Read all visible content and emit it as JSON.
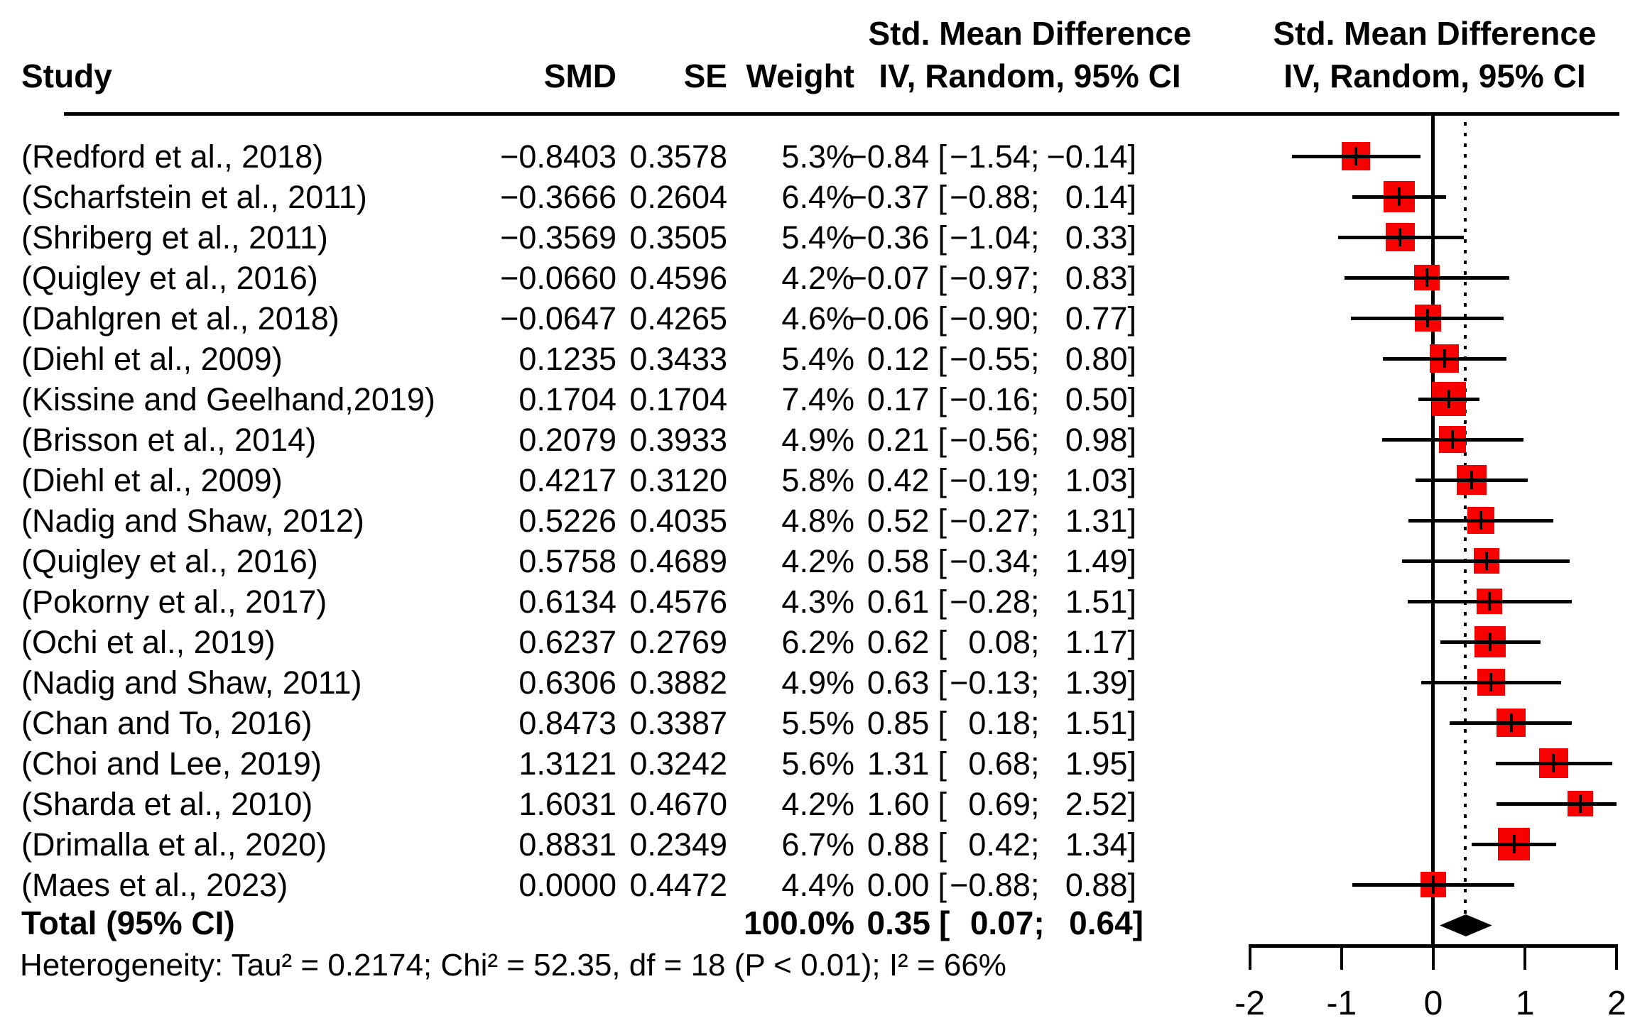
{
  "header": {
    "study": "Study",
    "smd": "SMD",
    "se": "SE",
    "weight": "Weight",
    "effect_text_line1": "Std. Mean Difference",
    "effect_text_line2": "IV, Random, 95% CI",
    "effect_plot_line1": "Std. Mean Difference",
    "effect_plot_line2": "IV, Random, 95% CI"
  },
  "total": {
    "label": "Total (95% CI)",
    "weight": "100.0%",
    "est": 0.35,
    "lo": 0.07,
    "hi": 0.64,
    "est_text": "0.35",
    "lo_text": "0.07",
    "hi_text": "0.64"
  },
  "heterogeneity": {
    "text": "Heterogeneity: Tau² = 0.2174; Chi² = 52.35, df = 18 (P < 0.01); I² = 66%"
  },
  "colors": {
    "square": "#f90000",
    "line": "#000000",
    "diamond": "#000000",
    "background": "#ffffff"
  },
  "chart_data": {
    "type": "scatter",
    "subtype": "forest-plot-meta-analysis",
    "effect_measure": "Std. Mean Difference (IV, Random, 95% CI)",
    "ci_format": {
      "open": "[",
      "sep": ";",
      "close": "]"
    },
    "x_axis": {
      "ticks": [
        -2,
        -1,
        0,
        1,
        2
      ],
      "tick_labels": [
        "-2",
        "-1",
        "0",
        "1",
        "2"
      ],
      "xlim": [
        -2,
        2
      ],
      "zero_line": 0,
      "pooled_dotted_line": 0.35
    },
    "pooled": {
      "est": 0.35,
      "lo": 0.07,
      "hi": 0.64,
      "i2": "66%",
      "tau2": "0.2174",
      "chi2": "52.35",
      "df": 18,
      "p": "< 0.01"
    },
    "studies": [
      {
        "label": "(Redford et al., 2018)",
        "smd": "−0.8403",
        "se": "0.3578",
        "weight": "5.3%",
        "w": 5.3,
        "est": -0.84,
        "lo": -1.54,
        "hi": -0.14,
        "est_text": "−0.84",
        "lo_text": "−1.54",
        "hi_text": "−0.14"
      },
      {
        "label": "(Scharfstein et al., 2011)",
        "smd": "−0.3666",
        "se": "0.2604",
        "weight": "6.4%",
        "w": 6.4,
        "est": -0.37,
        "lo": -0.88,
        "hi": 0.14,
        "est_text": "−0.37",
        "lo_text": "−0.88",
        "hi_text": "0.14"
      },
      {
        "label": "(Shriberg et al., 2011)",
        "smd": "−0.3569",
        "se": "0.3505",
        "weight": "5.4%",
        "w": 5.4,
        "est": -0.36,
        "lo": -1.04,
        "hi": 0.33,
        "est_text": "−0.36",
        "lo_text": "−1.04",
        "hi_text": "0.33"
      },
      {
        "label": "(Quigley et al., 2016)",
        "smd": "−0.0660",
        "se": "0.4596",
        "weight": "4.2%",
        "w": 4.2,
        "est": -0.07,
        "lo": -0.97,
        "hi": 0.83,
        "est_text": "−0.07",
        "lo_text": "−0.97",
        "hi_text": "0.83"
      },
      {
        "label": "(Dahlgren et al., 2018)",
        "smd": "−0.0647",
        "se": "0.4265",
        "weight": "4.6%",
        "w": 4.6,
        "est": -0.06,
        "lo": -0.9,
        "hi": 0.77,
        "est_text": "−0.06",
        "lo_text": "−0.90",
        "hi_text": "0.77"
      },
      {
        "label": "(Diehl et al., 2009)",
        "smd": "0.1235",
        "se": "0.3433",
        "weight": "5.4%",
        "w": 5.4,
        "est": 0.12,
        "lo": -0.55,
        "hi": 0.8,
        "est_text": "0.12",
        "lo_text": "−0.55",
        "hi_text": "0.80"
      },
      {
        "label": "(Kissine and Geelhand,2019)",
        "smd": "0.1704",
        "se": "0.1704",
        "weight": "7.4%",
        "w": 7.4,
        "est": 0.17,
        "lo": -0.16,
        "hi": 0.5,
        "est_text": "0.17",
        "lo_text": "−0.16",
        "hi_text": "0.50"
      },
      {
        "label": "(Brisson et al., 2014)",
        "smd": "0.2079",
        "se": "0.3933",
        "weight": "4.9%",
        "w": 4.9,
        "est": 0.21,
        "lo": -0.56,
        "hi": 0.98,
        "est_text": "0.21",
        "lo_text": "−0.56",
        "hi_text": "0.98"
      },
      {
        "label": "(Diehl et al., 2009)",
        "smd": "0.4217",
        "se": "0.3120",
        "weight": "5.8%",
        "w": 5.8,
        "est": 0.42,
        "lo": -0.19,
        "hi": 1.03,
        "est_text": "0.42",
        "lo_text": "−0.19",
        "hi_text": "1.03"
      },
      {
        "label": "(Nadig and Shaw, 2012)",
        "smd": "0.5226",
        "se": "0.4035",
        "weight": "4.8%",
        "w": 4.8,
        "est": 0.52,
        "lo": -0.27,
        "hi": 1.31,
        "est_text": "0.52",
        "lo_text": "−0.27",
        "hi_text": "1.31"
      },
      {
        "label": "(Quigley et al., 2016)",
        "smd": "0.5758",
        "se": "0.4689",
        "weight": "4.2%",
        "w": 4.2,
        "est": 0.58,
        "lo": -0.34,
        "hi": 1.49,
        "est_text": "0.58",
        "lo_text": "−0.34",
        "hi_text": "1.49"
      },
      {
        "label": "(Pokorny et al., 2017)",
        "smd": "0.6134",
        "se": "0.4576",
        "weight": "4.3%",
        "w": 4.3,
        "est": 0.61,
        "lo": -0.28,
        "hi": 1.51,
        "est_text": "0.61",
        "lo_text": "−0.28",
        "hi_text": "1.51"
      },
      {
        "label": "(Ochi et al., 2019)",
        "smd": "0.6237",
        "se": "0.2769",
        "weight": "6.2%",
        "w": 6.2,
        "est": 0.62,
        "lo": 0.08,
        "hi": 1.17,
        "est_text": "0.62",
        "lo_text": "0.08",
        "hi_text": "1.17"
      },
      {
        "label": "(Nadig and Shaw, 2011)",
        "smd": "0.6306",
        "se": "0.3882",
        "weight": "4.9%",
        "w": 4.9,
        "est": 0.63,
        "lo": -0.13,
        "hi": 1.39,
        "est_text": "0.63",
        "lo_text": "−0.13",
        "hi_text": "1.39"
      },
      {
        "label": "(Chan and To, 2016)",
        "smd": "0.8473",
        "se": "0.3387",
        "weight": "5.5%",
        "w": 5.5,
        "est": 0.85,
        "lo": 0.18,
        "hi": 1.51,
        "est_text": "0.85",
        "lo_text": "0.18",
        "hi_text": "1.51"
      },
      {
        "label": "(Choi and Lee, 2019)",
        "smd": "1.3121",
        "se": "0.3242",
        "weight": "5.6%",
        "w": 5.6,
        "est": 1.31,
        "lo": 0.68,
        "hi": 1.95,
        "est_text": "1.31",
        "lo_text": "0.68",
        "hi_text": "1.95"
      },
      {
        "label": "(Sharda et al., 2010)",
        "smd": "1.6031",
        "se": "0.4670",
        "weight": "4.2%",
        "w": 4.2,
        "est": 1.6,
        "lo": 0.69,
        "hi": 2.52,
        "est_text": "1.60",
        "lo_text": "0.69",
        "hi_text": "2.52"
      },
      {
        "label": "(Drimalla et al., 2020)",
        "smd": "0.8831",
        "se": "0.2349",
        "weight": "6.7%",
        "w": 6.7,
        "est": 0.88,
        "lo": 0.42,
        "hi": 1.34,
        "est_text": "0.88",
        "lo_text": "0.42",
        "hi_text": "1.34"
      },
      {
        "label": "(Maes et al., 2023)",
        "smd": "0.0000",
        "se": "0.4472",
        "weight": "4.4%",
        "w": 4.4,
        "est": 0.0,
        "lo": -0.88,
        "hi": 0.88,
        "est_text": "0.00",
        "lo_text": "−0.88",
        "hi_text": "0.88"
      }
    ]
  }
}
